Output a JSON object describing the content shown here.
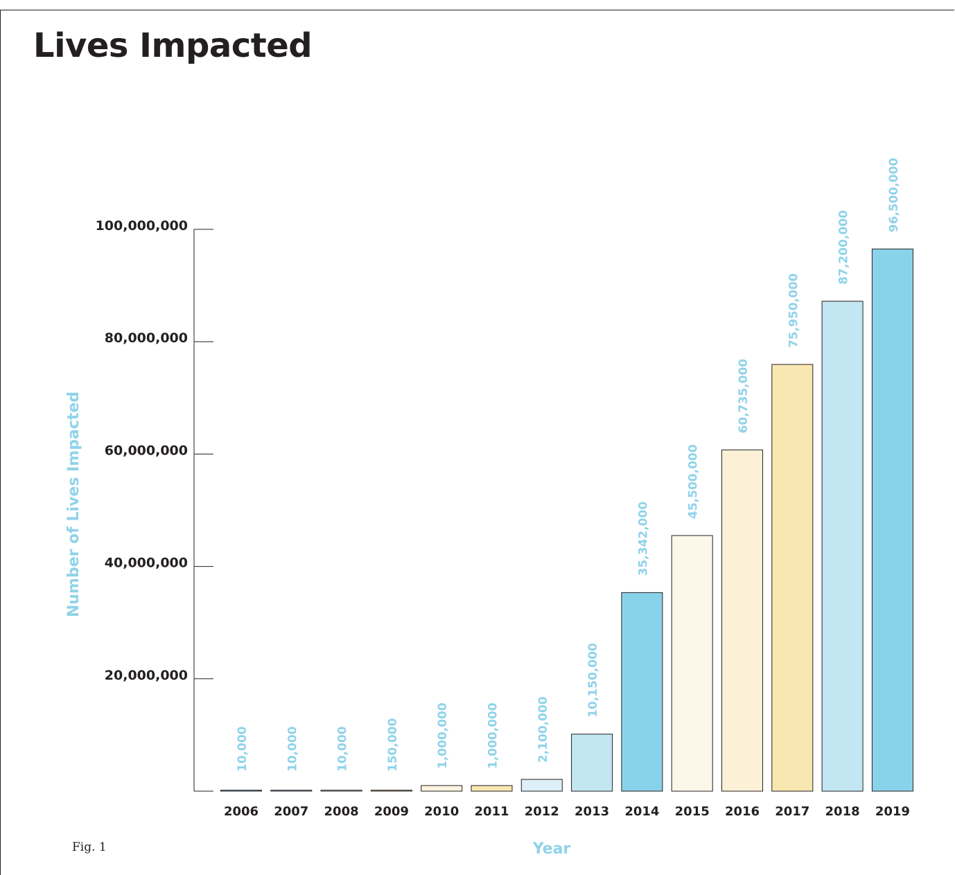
{
  "page": {
    "title": "Lives Impacted",
    "figure_label": "Fig. 1"
  },
  "colors": {
    "text_dark": "#231f20",
    "accent_blue": "#89d3ea",
    "label_blue": "#8fd3ea",
    "light_blue": "#c3e6f3",
    "pale_blue": "#ddeff8",
    "cream": "#fdf4e1",
    "light_yellow": "#fcefc4",
    "yellow": "#f9e7b2",
    "tan": "#f6e6c0"
  },
  "chart_data": {
    "type": "bar",
    "title": "Lives Impacted",
    "xlabel": "Year",
    "ylabel": "Number of Lives Impacted",
    "ylim": [
      0,
      100000000
    ],
    "yticks": [
      20000000,
      40000000,
      60000000,
      80000000,
      100000000
    ],
    "ytick_labels": [
      "20,000,000",
      "40,000,000",
      "60,000,000",
      "80,000,000",
      "100,000,000"
    ],
    "grid": false,
    "legend": "none",
    "categories": [
      "2006",
      "2007",
      "2008",
      "2009",
      "2010",
      "2011",
      "2012",
      "2013",
      "2014",
      "2015",
      "2016",
      "2017",
      "2018",
      "2019"
    ],
    "values": [
      10000,
      10000,
      10000,
      150000,
      1000000,
      1000000,
      2100000,
      10150000,
      35342000,
      45500000,
      60735000,
      75950000,
      87200000,
      96500000
    ],
    "value_labels": [
      "10,000",
      "10,000",
      "10,000",
      "150,000",
      "1,000,000",
      "1,000,000",
      "2,100,000",
      "10,150,000",
      "35,342,000",
      "45,500,000",
      "60,735,000",
      "75,950,000",
      "87,200,000",
      "96,500,000"
    ],
    "bar_colors": [
      "#89d3ea",
      "#c3e6f3",
      "#fdf4e1",
      "#f6e6c0",
      "#fdf4e1",
      "#f9e7b2",
      "#ddeff8",
      "#c3e6f3",
      "#89d3ea",
      "#fdf7ea",
      "#fcf1d6",
      "#f9e7b2",
      "#c3e6f3",
      "#89d3ea"
    ]
  }
}
